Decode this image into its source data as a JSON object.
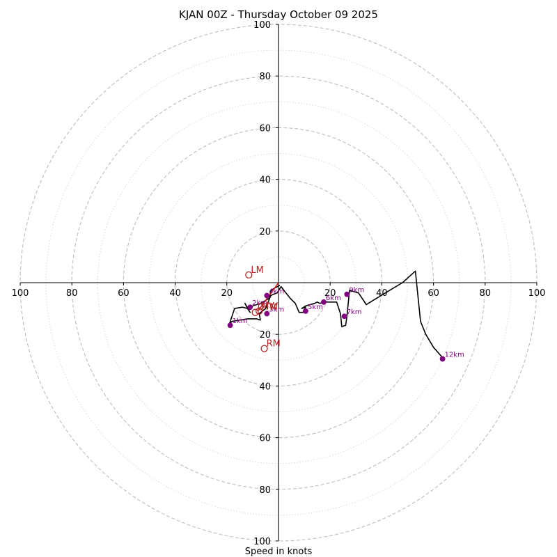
{
  "chart_data": {
    "type": "hodograph",
    "title": "KJAN 00Z - Thursday October 09 2025",
    "xlabel": "Speed in knots",
    "xlim": [
      -100,
      100
    ],
    "ylim": [
      -100,
      100
    ],
    "rings_major": [
      20,
      40,
      60,
      80,
      100
    ],
    "rings_minor": [
      10,
      30,
      50,
      70,
      90
    ],
    "x_ticks": [
      "100",
      "80",
      "60",
      "40",
      "20",
      "20",
      "40",
      "60",
      "80",
      "100"
    ],
    "x_tick_values": [
      -100,
      -80,
      -60,
      -40,
      -20,
      20,
      40,
      60,
      80,
      100
    ],
    "y_ticks": [
      "100",
      "80",
      "60",
      "40",
      "20",
      "20",
      "40",
      "60",
      "80",
      "100"
    ],
    "y_tick_values": [
      100,
      80,
      60,
      40,
      20,
      -20,
      -40,
      -60,
      -80,
      -100
    ],
    "hodograph_trace": {
      "u": [
        0.5,
        -3,
        -3.5,
        -7,
        -10,
        -12,
        -11,
        -13,
        -12,
        -14,
        -17,
        -19,
        -19.5,
        -18,
        -12,
        -8.5,
        -7,
        -7.5,
        -5,
        -3,
        -2,
        -0.5,
        1,
        2.5,
        4.5,
        6.5,
        8,
        9.5,
        10.5,
        9,
        10.5,
        14,
        15,
        16,
        18,
        20,
        22.5,
        24,
        24.5,
        26,
        26.5,
        27.5,
        31,
        34,
        38,
        43,
        48,
        53,
        55,
        57,
        60,
        63.5
      ],
      "v": [
        -1,
        -3,
        -6,
        -8,
        -9,
        -10,
        -11.5,
        -8,
        -10,
        -9.5,
        -10,
        -16,
        -16.5,
        -15,
        -14,
        -14,
        -14.5,
        -12,
        -10,
        -5,
        -4.5,
        -4,
        -1.5,
        -3.5,
        -6,
        -8,
        -11.5,
        -11.5,
        -9.5,
        -10,
        -9,
        -8,
        -7.5,
        -8,
        -7.5,
        -7.5,
        -7.5,
        -12,
        -17,
        -16.5,
        -13,
        -3,
        -4,
        -8.5,
        -6,
        -3,
        0,
        4.5,
        -15,
        -20,
        -25,
        -29
      ]
    },
    "height_markers": [
      {
        "label": "1km",
        "u": -18.7,
        "v": -16.5
      },
      {
        "label": "2km",
        "u": -11,
        "v": -9.5
      },
      {
        "label": "3km",
        "u": -4.5,
        "v": -12
      },
      {
        "label": "4km",
        "u": -4.5,
        "v": -5
      },
      {
        "label": "5km",
        "u": 10.5,
        "v": -11
      },
      {
        "label": "6km",
        "u": 17.5,
        "v": -7.5
      },
      {
        "label": "7km",
        "u": 25.5,
        "v": -13
      },
      {
        "label": "9km",
        "u": 26.5,
        "v": -4.5
      },
      {
        "label": "12km",
        "u": 63.5,
        "v": -29.5
      }
    ],
    "storm_motion": [
      {
        "label": "LM",
        "u": -11.5,
        "v": 3
      },
      {
        "label": "RM",
        "u": -5.5,
        "v": -25.5
      },
      {
        "label": "MW",
        "u": -7.5,
        "v": -11
      },
      {
        "label": "DTM",
        "u": -9,
        "v": -11.5
      }
    ],
    "shear_vector": {
      "u0": -8,
      "v0": -11,
      "u1": 0,
      "v1": 0
    },
    "colors": {
      "trace": "#000000",
      "markers": "#800080",
      "storm": "#b22222",
      "grid": "#bdbdbd",
      "grid_minor": "#d9d9d9",
      "axes": "#000000"
    }
  }
}
